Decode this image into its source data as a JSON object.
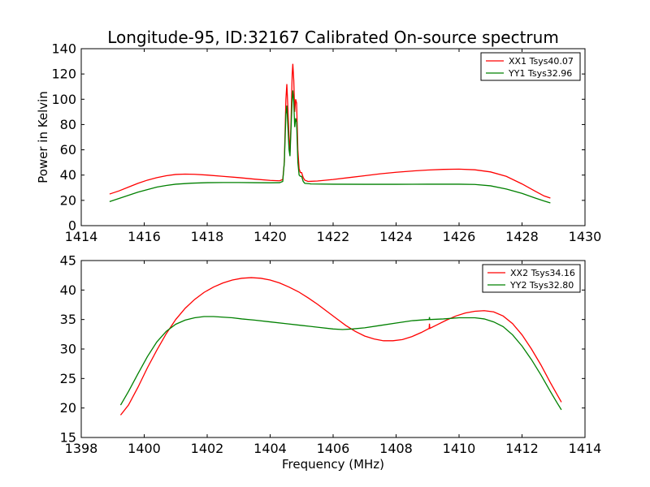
{
  "chart_data": [
    {
      "type": "line",
      "title": "Longitude-95, ID:32167 Calibrated On-source spectrum",
      "xlabel": "",
      "ylabel": "Power in Kelvin",
      "xlim": [
        1414,
        1430
      ],
      "ylim": [
        0,
        140
      ],
      "xticks": [
        1414,
        1416,
        1418,
        1420,
        1422,
        1424,
        1426,
        1428,
        1430
      ],
      "yticks": [
        0,
        20,
        40,
        60,
        80,
        100,
        120,
        140
      ],
      "legend_position": "top-right",
      "series": [
        {
          "name": "XX1 Tsys40.07",
          "color": "#ff0000",
          "points": [
            [
              1414.9,
              25
            ],
            [
              1415.2,
              27.5
            ],
            [
              1415.5,
              30.5
            ],
            [
              1415.8,
              33.5
            ],
            [
              1416.1,
              36
            ],
            [
              1416.4,
              38
            ],
            [
              1416.7,
              39.5
            ],
            [
              1417.0,
              40.5
            ],
            [
              1417.3,
              40.8
            ],
            [
              1417.6,
              40.6
            ],
            [
              1418.0,
              40
            ],
            [
              1418.5,
              39
            ],
            [
              1419.0,
              38
            ],
            [
              1419.5,
              36.8
            ],
            [
              1420.0,
              35.8
            ],
            [
              1420.3,
              35.5
            ],
            [
              1420.4,
              36.5
            ],
            [
              1420.45,
              50
            ],
            [
              1420.5,
              100
            ],
            [
              1420.53,
              112
            ],
            [
              1420.56,
              95
            ],
            [
              1420.6,
              70
            ],
            [
              1420.63,
              58
            ],
            [
              1420.66,
              80
            ],
            [
              1420.7,
              120
            ],
            [
              1420.72,
              128
            ],
            [
              1420.75,
              115
            ],
            [
              1420.78,
              90
            ],
            [
              1420.81,
              100
            ],
            [
              1420.84,
              97
            ],
            [
              1420.88,
              60
            ],
            [
              1420.92,
              45
            ],
            [
              1420.96,
              42
            ],
            [
              1421.0,
              42
            ],
            [
              1421.05,
              38
            ],
            [
              1421.1,
              36
            ],
            [
              1421.2,
              35
            ],
            [
              1421.5,
              35.3
            ],
            [
              1422.0,
              36.5
            ],
            [
              1422.5,
              38
            ],
            [
              1423.0,
              39.5
            ],
            [
              1423.5,
              41
            ],
            [
              1424.0,
              42.2
            ],
            [
              1424.5,
              43.2
            ],
            [
              1425.0,
              44
            ],
            [
              1425.5,
              44.5
            ],
            [
              1426.0,
              44.7
            ],
            [
              1426.5,
              44.2
            ],
            [
              1427.0,
              42.5
            ],
            [
              1427.5,
              39
            ],
            [
              1428.0,
              33
            ],
            [
              1428.4,
              27.5
            ],
            [
              1428.7,
              23.5
            ],
            [
              1428.9,
              21.8
            ]
          ]
        },
        {
          "name": "YY1 Tsys32.96",
          "color": "#008000",
          "points": [
            [
              1414.9,
              19
            ],
            [
              1415.2,
              21.5
            ],
            [
              1415.5,
              24
            ],
            [
              1415.8,
              26.5
            ],
            [
              1416.1,
              28.5
            ],
            [
              1416.4,
              30.5
            ],
            [
              1416.7,
              31.8
            ],
            [
              1417.0,
              32.8
            ],
            [
              1417.5,
              33.6
            ],
            [
              1418.0,
              34
            ],
            [
              1418.5,
              34.1
            ],
            [
              1419.0,
              34.1
            ],
            [
              1419.5,
              34
            ],
            [
              1420.0,
              33.9
            ],
            [
              1420.3,
              34
            ],
            [
              1420.4,
              35
            ],
            [
              1420.45,
              50
            ],
            [
              1420.5,
              88
            ],
            [
              1420.53,
              95
            ],
            [
              1420.56,
              80
            ],
            [
              1420.6,
              60
            ],
            [
              1420.63,
              55
            ],
            [
              1420.66,
              75
            ],
            [
              1420.7,
              100
            ],
            [
              1420.72,
              107
            ],
            [
              1420.75,
              98
            ],
            [
              1420.78,
              78
            ],
            [
              1420.81,
              85
            ],
            [
              1420.84,
              82
            ],
            [
              1420.88,
              50
            ],
            [
              1420.92,
              40
            ],
            [
              1420.96,
              39
            ],
            [
              1421.0,
              39
            ],
            [
              1421.05,
              35
            ],
            [
              1421.1,
              33.5
            ],
            [
              1421.3,
              33
            ],
            [
              1422.0,
              32.8
            ],
            [
              1423.0,
              32.7
            ],
            [
              1424.0,
              32.7
            ],
            [
              1425.0,
              32.8
            ],
            [
              1426.0,
              32.8
            ],
            [
              1426.5,
              32.6
            ],
            [
              1427.0,
              31.5
            ],
            [
              1427.5,
              29
            ],
            [
              1428.0,
              25.5
            ],
            [
              1428.4,
              22
            ],
            [
              1428.7,
              19.5
            ],
            [
              1428.9,
              18
            ]
          ]
        }
      ]
    },
    {
      "type": "line",
      "title": "",
      "xlabel": "Frequency (MHz)",
      "ylabel": "",
      "xlim": [
        1398,
        1414
      ],
      "ylim": [
        15,
        45
      ],
      "xticks": [
        1398,
        1400,
        1402,
        1404,
        1406,
        1408,
        1410,
        1412,
        1414
      ],
      "yticks": [
        15,
        20,
        25,
        30,
        35,
        40,
        45
      ],
      "legend_position": "top-right",
      "series": [
        {
          "name": "XX2 Tsys34.16",
          "color": "#ff0000",
          "points": [
            [
              1399.25,
              18.8
            ],
            [
              1399.5,
              20.5
            ],
            [
              1399.8,
              23.5
            ],
            [
              1400.1,
              26.8
            ],
            [
              1400.4,
              29.8
            ],
            [
              1400.7,
              32.6
            ],
            [
              1401.0,
              35
            ],
            [
              1401.3,
              36.9
            ],
            [
              1401.6,
              38.4
            ],
            [
              1401.9,
              39.6
            ],
            [
              1402.2,
              40.5
            ],
            [
              1402.5,
              41.2
            ],
            [
              1402.8,
              41.7
            ],
            [
              1403.1,
              42
            ],
            [
              1403.4,
              42.1
            ],
            [
              1403.7,
              42
            ],
            [
              1404.0,
              41.7
            ],
            [
              1404.3,
              41.2
            ],
            [
              1404.6,
              40.5
            ],
            [
              1404.9,
              39.7
            ],
            [
              1405.2,
              38.7
            ],
            [
              1405.5,
              37.6
            ],
            [
              1405.8,
              36.4
            ],
            [
              1406.1,
              35.2
            ],
            [
              1406.4,
              34
            ],
            [
              1406.7,
              33
            ],
            [
              1407.0,
              32.2
            ],
            [
              1407.3,
              31.7
            ],
            [
              1407.6,
              31.4
            ],
            [
              1407.9,
              31.4
            ],
            [
              1408.2,
              31.6
            ],
            [
              1408.5,
              32.1
            ],
            [
              1408.8,
              32.8
            ],
            [
              1409.05,
              33.5
            ],
            [
              1409.06,
              34.3
            ],
            [
              1409.07,
              33.5
            ],
            [
              1409.3,
              34.1
            ],
            [
              1409.6,
              34.9
            ],
            [
              1409.9,
              35.6
            ],
            [
              1410.2,
              36.1
            ],
            [
              1410.5,
              36.4
            ],
            [
              1410.8,
              36.5
            ],
            [
              1411.1,
              36.3
            ],
            [
              1411.4,
              35.6
            ],
            [
              1411.7,
              34.3
            ],
            [
              1412.0,
              32.4
            ],
            [
              1412.3,
              30
            ],
            [
              1412.6,
              27.3
            ],
            [
              1412.9,
              24.3
            ],
            [
              1413.1,
              22.4
            ],
            [
              1413.25,
              21
            ]
          ]
        },
        {
          "name": "YY2 Tsys32.80",
          "color": "#008000",
          "points": [
            [
              1399.25,
              20.5
            ],
            [
              1399.5,
              22.8
            ],
            [
              1399.8,
              25.8
            ],
            [
              1400.1,
              28.7
            ],
            [
              1400.4,
              31.2
            ],
            [
              1400.7,
              33
            ],
            [
              1401.0,
              34.2
            ],
            [
              1401.3,
              34.9
            ],
            [
              1401.6,
              35.3
            ],
            [
              1401.9,
              35.5
            ],
            [
              1402.2,
              35.5
            ],
            [
              1402.5,
              35.4
            ],
            [
              1402.8,
              35.3
            ],
            [
              1403.1,
              35.1
            ],
            [
              1403.5,
              34.9
            ],
            [
              1404.0,
              34.6
            ],
            [
              1404.5,
              34.3
            ],
            [
              1405.0,
              34
            ],
            [
              1405.5,
              33.7
            ],
            [
              1406.0,
              33.4
            ],
            [
              1406.3,
              33.3
            ],
            [
              1406.6,
              33.4
            ],
            [
              1407.0,
              33.6
            ],
            [
              1407.5,
              34
            ],
            [
              1408.0,
              34.4
            ],
            [
              1408.5,
              34.8
            ],
            [
              1409.0,
              35
            ],
            [
              1409.05,
              35
            ],
            [
              1409.06,
              35.4
            ],
            [
              1409.07,
              35
            ],
            [
              1409.5,
              35.1
            ],
            [
              1410.0,
              35.3
            ],
            [
              1410.5,
              35.3
            ],
            [
              1410.8,
              35.1
            ],
            [
              1411.1,
              34.6
            ],
            [
              1411.4,
              33.8
            ],
            [
              1411.7,
              32.4
            ],
            [
              1412.0,
              30.5
            ],
            [
              1412.3,
              28.2
            ],
            [
              1412.6,
              25.6
            ],
            [
              1412.9,
              22.8
            ],
            [
              1413.1,
              21
            ],
            [
              1413.25,
              19.7
            ]
          ]
        }
      ]
    }
  ]
}
